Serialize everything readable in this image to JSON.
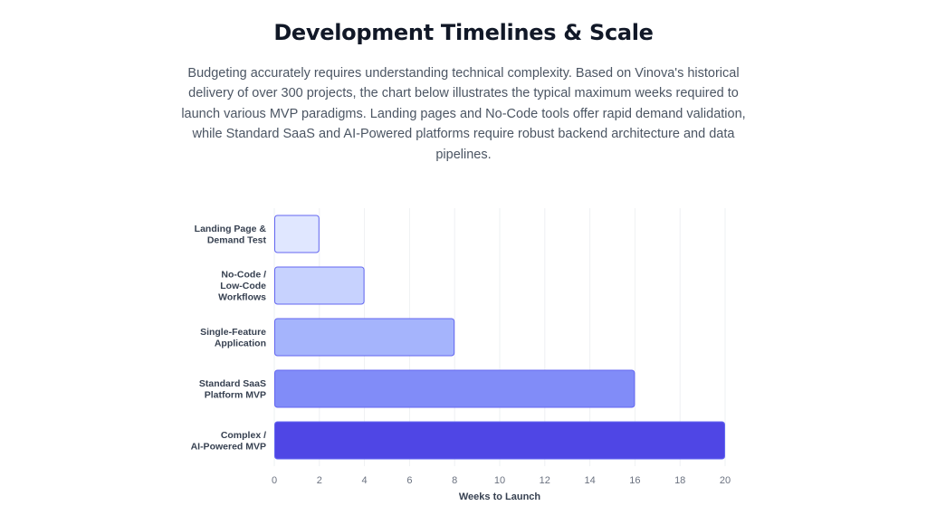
{
  "section": {
    "title": "Development Timelines & Scale",
    "description": "Budgeting accurately requires understanding technical complexity. Based on Vinova's historical delivery of over 300 projects, the chart below illustrates the typical maximum weeks required to launch various MVP paradigms. Landing pages and No-Code tools offer rapid demand validation, while Standard SaaS and AI-Powered platforms require robust backend architecture and data pipelines."
  },
  "chart_data": {
    "type": "bar",
    "orientation": "horizontal",
    "categories": [
      [
        "Landing Page &",
        "Demand Test"
      ],
      [
        "No-Code /",
        "Low-Code",
        "Workflows"
      ],
      [
        "Single-Feature",
        "Application"
      ],
      [
        "Standard SaaS",
        "Platform MVP"
      ],
      [
        "Complex /",
        "AI-Powered MVP"
      ]
    ],
    "values": [
      2,
      4,
      8,
      16,
      20
    ],
    "xlabel": "Weeks to Launch",
    "ylabel": "",
    "xlim": [
      0,
      20
    ],
    "xticks": [
      0,
      2,
      4,
      6,
      8,
      10,
      12,
      14,
      16,
      18,
      20
    ],
    "grid": "vertical",
    "legend": "none",
    "colors": {
      "fills": [
        "#e0e7ff",
        "#c7d2fe",
        "#a5b4fc",
        "#818cf8",
        "#4f46e5"
      ],
      "border": "#6366f1",
      "grid": "#eef0f3"
    }
  }
}
